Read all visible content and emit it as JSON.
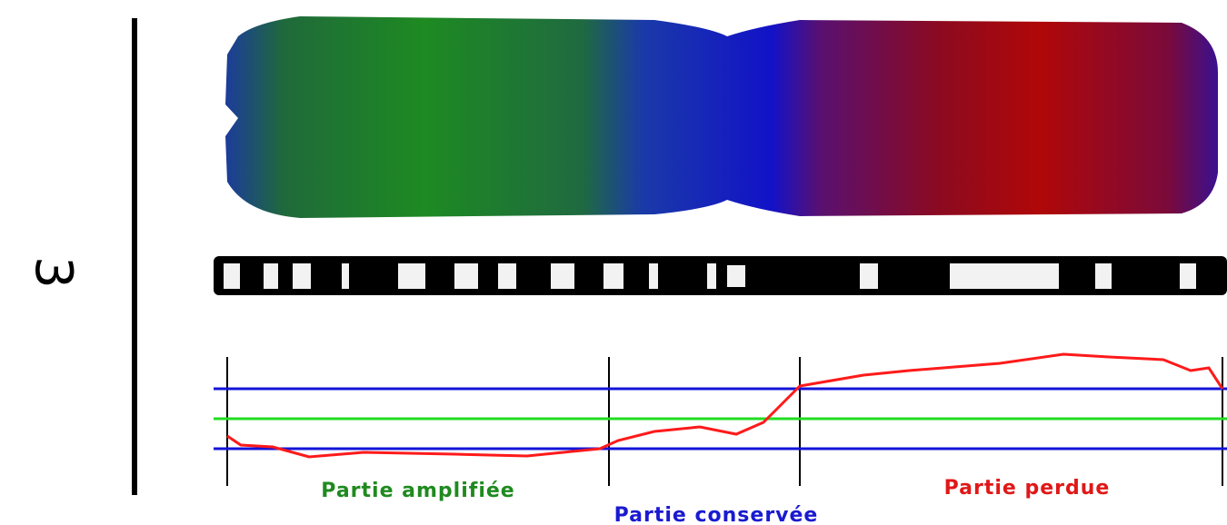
{
  "chromosome_label": "3",
  "labels": {
    "amplified": "Partie amplifiée",
    "conserved": "Partie conservée",
    "lost": "Partie perdue"
  }
}
